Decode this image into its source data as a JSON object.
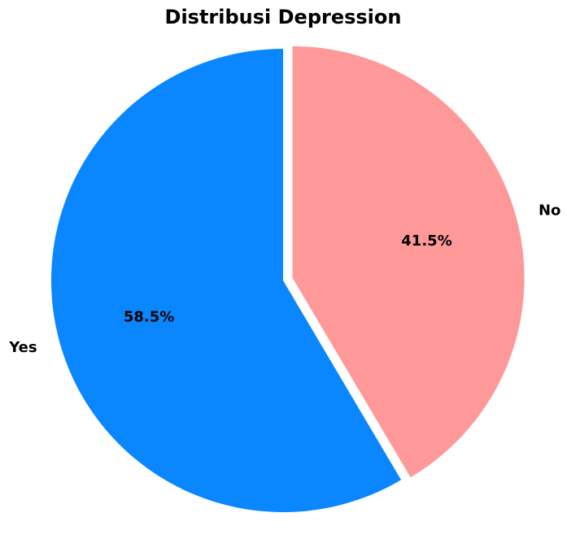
{
  "chart_data": {
    "type": "pie",
    "title": "Distribusi Depression",
    "labels": [
      "Yes",
      "No"
    ],
    "values": [
      58.5,
      41.5
    ],
    "percent_labels": [
      "58.5%",
      "41.5%"
    ],
    "colors": [
      "#0a87ff",
      "#ff9999"
    ],
    "start_angle_deg": 90,
    "direction": "counterclockwise",
    "exploded": [
      "No"
    ],
    "legend": "none"
  }
}
